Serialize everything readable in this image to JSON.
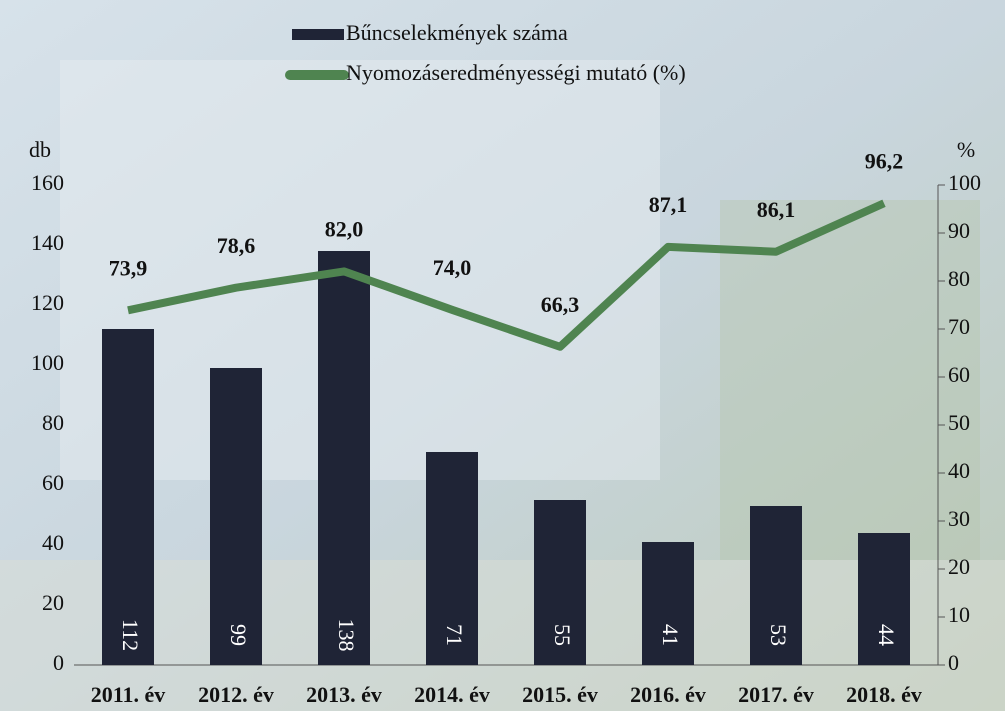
{
  "chart_data": {
    "type": "bar",
    "categories": [
      "2011. év",
      "2012. év",
      "2013. év",
      "2014. év",
      "2015. év",
      "2016. év",
      "2017. év",
      "2018. év"
    ],
    "series": [
      {
        "name": "Bűncselekmények száma",
        "color": "#1f2436",
        "values": [
          112,
          99,
          138,
          71,
          55,
          41,
          53,
          44
        ]
      },
      {
        "name": "Nyomozáseredményességi mutató (%)",
        "type": "line",
        "axis": "y2",
        "color": "#4f8450",
        "values": [
          73.9,
          78.6,
          82.0,
          74.0,
          66.3,
          87.1,
          86.1,
          96.2
        ],
        "value_labels": [
          "73,9",
          "78,6",
          "82,0",
          "74,0",
          "66,3",
          "87,1",
          "86,1",
          "96,2"
        ]
      }
    ],
    "y_label": "db",
    "y2_label": "%",
    "ylim": [
      0,
      160
    ],
    "yticks": [
      0,
      20,
      40,
      60,
      80,
      100,
      120,
      140,
      160
    ],
    "y2lim": [
      0,
      100
    ],
    "y2ticks": [
      0,
      10,
      20,
      30,
      40,
      50,
      60,
      70,
      80,
      90,
      100
    ]
  }
}
